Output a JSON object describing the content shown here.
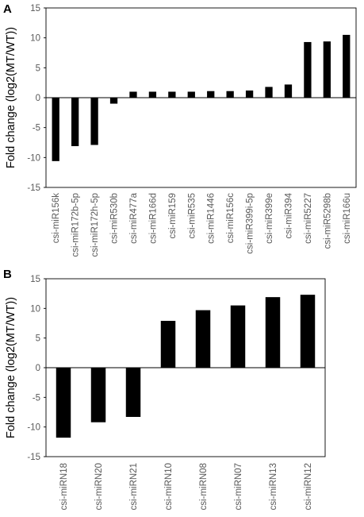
{
  "chart_data": [
    {
      "type": "bar",
      "panel_label": "A",
      "ylabel": "Fold change (log2(MT/WT))",
      "xlabel": "",
      "ylim": [
        -15,
        15
      ],
      "yticks": [
        -15,
        -10,
        -5,
        0,
        5,
        10,
        15
      ],
      "grid": false,
      "legend": "none",
      "categories": [
        "csi-miR156k",
        "csi-miR172b-5p",
        "csi-miR172h-5p",
        "csi-miR530b",
        "csi-miR477a",
        "csi-miR166d",
        "csi-miR159",
        "csi-miR535",
        "csi-miR1446",
        "csi-miR156c",
        "csi-miR399i-5p",
        "csi-miR399e",
        "csi-miR394",
        "csi-miR5227",
        "csi-miR5298b",
        "csi-miR166u"
      ],
      "values": [
        -10.6,
        -8.1,
        -7.9,
        -1.0,
        1.0,
        1.0,
        1.0,
        1.0,
        1.1,
        1.1,
        1.2,
        1.8,
        2.2,
        9.3,
        9.4,
        10.5
      ],
      "bar_color": "#000000"
    },
    {
      "type": "bar",
      "panel_label": "B",
      "ylabel": "Fold change (log2(MT/WT))",
      "xlabel": "",
      "ylim": [
        -15,
        15
      ],
      "yticks": [
        -15,
        -10,
        -5,
        0,
        5,
        10,
        15
      ],
      "grid": false,
      "legend": "none",
      "categories": [
        "csi-miRN18",
        "csi-miRN20",
        "csi-miRN21",
        "csi-miRN10",
        "csi-miRN08",
        "csi-miRN07",
        "csi-miRN13",
        "csi-miRN12"
      ],
      "values": [
        -11.8,
        -9.2,
        -8.3,
        7.9,
        9.7,
        10.5,
        11.9,
        12.3
      ],
      "bar_color": "#000000"
    }
  ]
}
